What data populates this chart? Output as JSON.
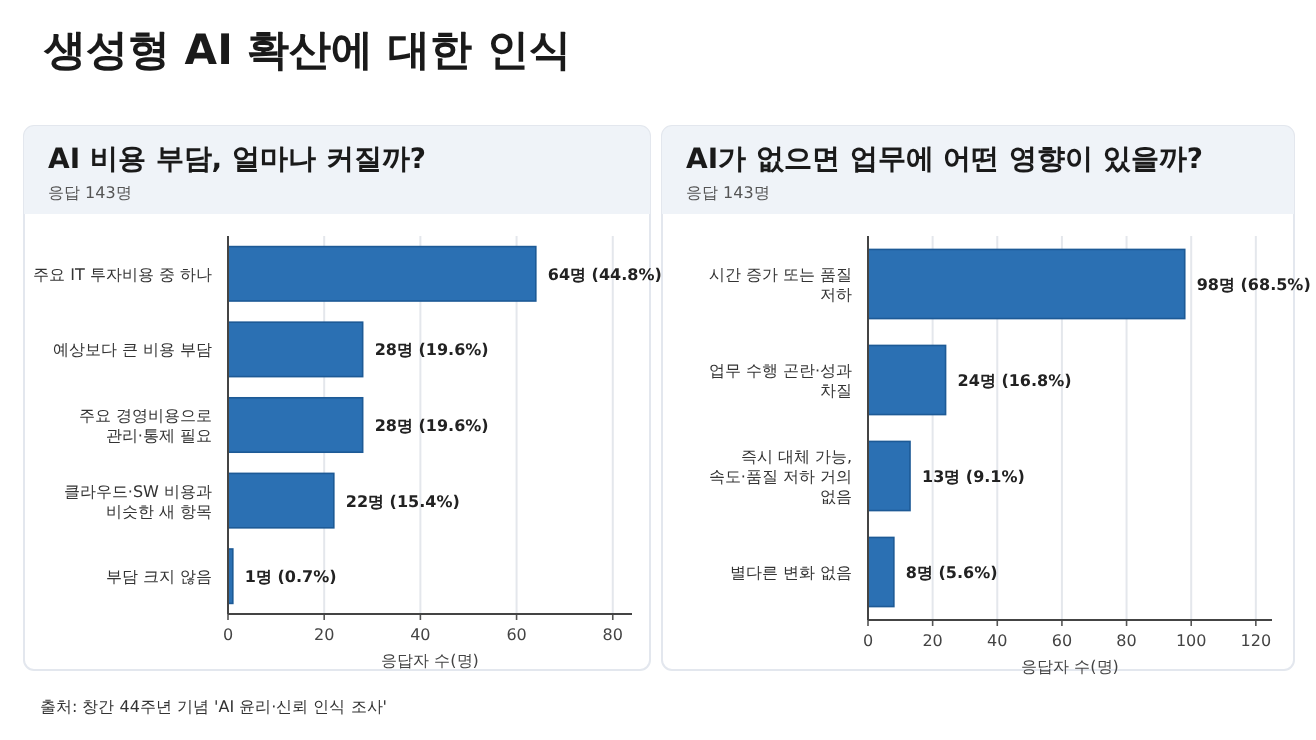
{
  "chart_data": [
    {
      "type": "bar",
      "orientation": "horizontal",
      "title": "AI 비용 부담, 얼마나 커질까?",
      "subtitle": "응답 143명",
      "xlabel": "응답자 수(명)",
      "annotations": [
        "생성형 AI 확산에 대한 인식"
      ],
      "categories": [
        "주요 IT 투자비용 중 하나",
        "예상보다 큰 비용 부담",
        "주요 경영비용으로 관리·통제 필요",
        "클라우드·SW 비용과 비슷한 새 항목",
        "부담 크지 않음"
      ],
      "values": [
        64,
        28,
        28,
        22,
        1
      ],
      "value_labels": [
        "64명 (44.8%)",
        "28명 (19.6%)",
        "28명 (19.6%)",
        "22명 (15.4%)",
        "1명 (0.7%)"
      ],
      "color": "#2b70b3",
      "xlim": [
        0,
        84
      ],
      "xticks": [
        0,
        20,
        40,
        60,
        80
      ],
      "grid": "x"
    },
    {
      "type": "bar",
      "orientation": "horizontal",
      "title": "AI가 없으면 업무에 어떤 영향이 있을까?",
      "subtitle": "응답 143명",
      "xlabel": "응답자 수(명)",
      "annotations": [
        "출처: 창간 44주년 기념 'AI 윤리·신뢰 인식 조사'"
      ],
      "categories": [
        "시간 증가 또는 품질 저하",
        "업무 수행 곤란·성과 차질",
        "즉시 대체 가능, 속도·품질 저하 거의 없음",
        "별다른 변화 없음"
      ],
      "values": [
        98,
        24,
        13,
        8
      ],
      "value_labels": [
        "98명 (68.5%)",
        "24명 (16.8%)",
        "13명 (9.1%)",
        "8명 (5.6%)"
      ],
      "color": "#2b70b3",
      "xlim": [
        0,
        125
      ],
      "xticks": [
        0,
        20,
        40,
        60,
        80,
        100,
        120
      ],
      "grid": "x"
    }
  ]
}
